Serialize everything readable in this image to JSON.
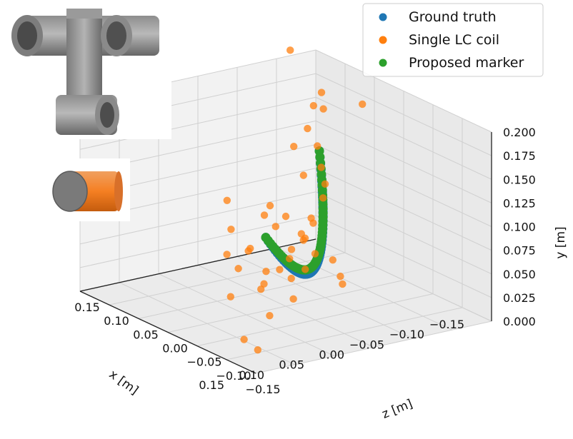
{
  "chart_data": {
    "type": "scatter3d",
    "axes": {
      "x": {
        "label": "x [m]",
        "range": [
          -0.15,
          0.15
        ],
        "ticks": [
          -0.15,
          -0.1,
          -0.05,
          0.0,
          0.05,
          0.1,
          0.15
        ],
        "tick_labels": [
          "−0.15",
          "−0.10",
          "−0.05",
          "0.00",
          "0.05",
          "0.10",
          "0.15"
        ]
      },
      "z": {
        "label": "z [m]",
        "range": [
          -0.15,
          0.15
        ],
        "ticks": [
          -0.15,
          -0.1,
          -0.05,
          0.0,
          0.05,
          0.1,
          0.15
        ],
        "tick_labels": [
          "−0.15",
          "−0.10",
          "−0.05",
          "0.00",
          "0.05",
          "0.10",
          "0.15"
        ]
      },
      "y": {
        "label": "y [m]",
        "range": [
          0.0,
          0.2
        ],
        "ticks": [
          0.0,
          0.025,
          0.05,
          0.075,
          0.1,
          0.125,
          0.15,
          0.175,
          0.2
        ],
        "tick_labels": [
          "0.000",
          "0.025",
          "0.050",
          "0.075",
          "0.100",
          "0.125",
          "0.150",
          "0.175",
          "0.200"
        ]
      }
    },
    "legend": {
      "placement": "top-right",
      "entries": [
        {
          "label": "Ground truth",
          "color": "#1f77b4"
        },
        {
          "label": "Single LC coil",
          "color": "#ff7f0e"
        },
        {
          "label": "Proposed marker",
          "color": "#2ca02c"
        }
      ]
    },
    "grid": true,
    "series": [
      {
        "name": "Ground truth",
        "color": "#1f77b4",
        "kind": "arc",
        "count": 60,
        "start": {
          "x": 0.1,
          "z": 0.1,
          "y": 0.12
        },
        "mid": {
          "x": 0.0,
          "z": 0.05,
          "y": 0.055
        },
        "end": {
          "x": -0.08,
          "z": -0.05,
          "y": 0.135
        }
      },
      {
        "name": "Proposed marker",
        "color": "#2ca02c",
        "kind": "arc",
        "count": 60,
        "start": {
          "x": 0.1,
          "z": 0.1,
          "y": 0.12
        },
        "mid": {
          "x": 0.0,
          "z": 0.05,
          "y": 0.06
        },
        "end": {
          "x": -0.08,
          "z": -0.05,
          "y": 0.135
        }
      },
      {
        "name": "Single LC coil",
        "color": "#ff7f0e",
        "kind": "points",
        "points": [
          {
            "x": 0.08,
            "z": 0.09,
            "y": 0.125
          },
          {
            "x": 0.095,
            "z": 0.085,
            "y": 0.06
          },
          {
            "x": 0.11,
            "z": 0.12,
            "y": 0.045
          },
          {
            "x": 0.15,
            "z": 0.13,
            "y": 0.03
          },
          {
            "x": 0.14,
            "z": 0.14,
            "y": 0.02
          },
          {
            "x": 0.06,
            "z": 0.07,
            "y": 0.07
          },
          {
            "x": 0.05,
            "z": 0.08,
            "y": 0.04
          },
          {
            "x": 0.04,
            "z": 0.06,
            "y": 0.075
          },
          {
            "x": 0.03,
            "z": 0.05,
            "y": 0.08
          },
          {
            "x": 0.02,
            "z": 0.06,
            "y": 0.06
          },
          {
            "x": 0.01,
            "z": 0.04,
            "y": 0.09
          },
          {
            "x": 0.0,
            "z": 0.05,
            "y": 0.07
          },
          {
            "x": -0.01,
            "z": 0.03,
            "y": 0.1
          },
          {
            "x": -0.02,
            "z": 0.02,
            "y": 0.09
          },
          {
            "x": -0.03,
            "z": 0.04,
            "y": 0.055
          },
          {
            "x": -0.04,
            "z": 0.01,
            "y": 0.11
          },
          {
            "x": -0.05,
            "z": 0.0,
            "y": 0.12
          },
          {
            "x": -0.06,
            "z": -0.02,
            "y": 0.13
          },
          {
            "x": -0.05,
            "z": -0.03,
            "y": 0.17
          },
          {
            "x": -0.08,
            "z": -0.06,
            "y": 0.18
          },
          {
            "x": -0.1,
            "z": -0.07,
            "y": 0.17
          },
          {
            "x": -0.04,
            "z": -0.04,
            "y": 0.15
          },
          {
            "x": -0.03,
            "z": -0.01,
            "y": 0.13
          },
          {
            "x": -0.07,
            "z": -0.04,
            "y": 0.145
          },
          {
            "x": 0.09,
            "z": 0.06,
            "y": 0.095
          },
          {
            "x": 0.07,
            "z": 0.03,
            "y": 0.08
          },
          {
            "x": 0.12,
            "z": 0.08,
            "y": 0.085
          },
          {
            "x": 0.05,
            "z": 0.1,
            "y": 0.11
          },
          {
            "x": 0.06,
            "z": -0.02,
            "y": 0.06
          },
          {
            "x": -0.02,
            "z": 0.07,
            "y": 0.04
          },
          {
            "x": 0.0,
            "z": 0.0,
            "y": 0.095
          },
          {
            "x": -0.09,
            "z": 0.01,
            "y": 0.2
          },
          {
            "x": 0.03,
            "z": -0.06,
            "y": 0.1
          },
          {
            "x": -0.01,
            "z": -0.05,
            "y": 0.08
          },
          {
            "x": 0.01,
            "z": -0.08,
            "y": 0.06
          },
          {
            "x": -0.11,
            "z": -0.14,
            "y": 0.21
          },
          {
            "x": 0.02,
            "z": 0.12,
            "y": 0.07
          },
          {
            "x": -0.12,
            "z": -0.1,
            "y": 0.175
          },
          {
            "x": 0.13,
            "z": -0.12,
            "y": 0.11
          },
          {
            "x": 0.1,
            "z": 0.04,
            "y": 0.04
          },
          {
            "x": 0.075,
            "z": 0.11,
            "y": 0.075
          },
          {
            "x": 0.04,
            "z": 0.02,
            "y": 0.05
          },
          {
            "x": -0.015,
            "z": 0.01,
            "y": 0.07
          },
          {
            "x": 0.02,
            "z": 0.0,
            "y": 0.11
          },
          {
            "x": 0.065,
            "z": 0.05,
            "y": 0.05
          }
        ]
      }
    ]
  },
  "images": [
    {
      "name": "tshape-marker-illustration",
      "description_icon": "t-shaped-tube-icon"
    },
    {
      "name": "single-coil-illustration",
      "description_icon": "cylinder-coil-icon"
    }
  ]
}
